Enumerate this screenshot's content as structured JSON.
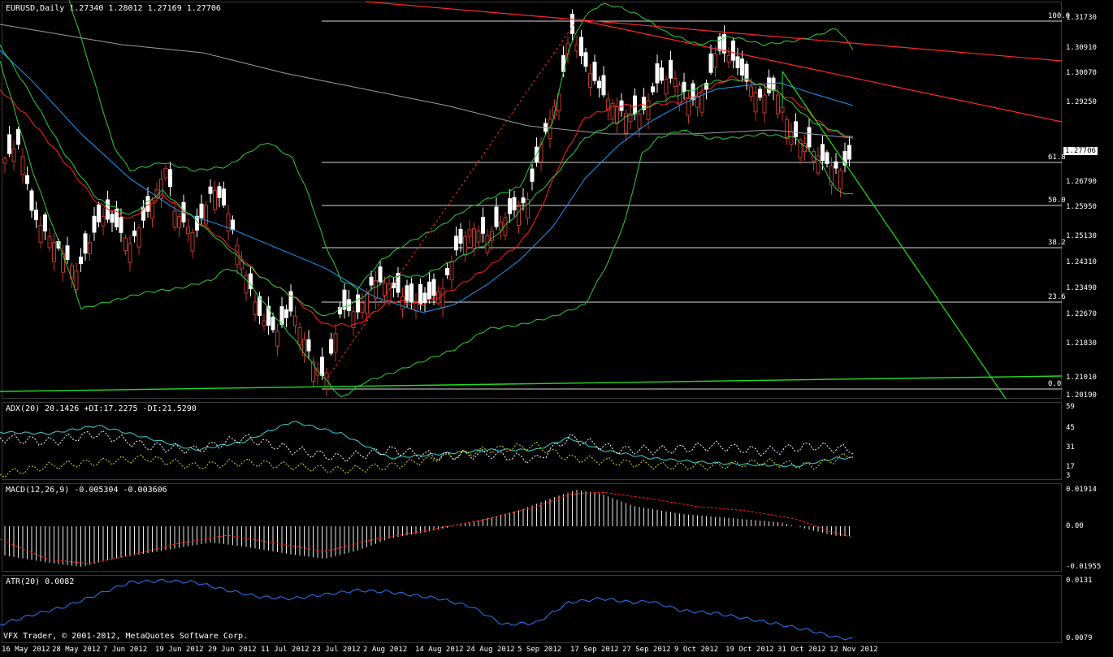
{
  "main": {
    "symbol": "EURUSD,Daily",
    "ohlc": "1.27340 1.28012 1.27169 1.27706",
    "current_price": "1.27706",
    "price_labels": [
      "1.31730",
      "1.30910",
      "1.30070",
      "1.29250",
      "1.28430",
      "1.27706",
      "1.26790",
      "1.25950",
      "1.25130",
      "1.24310",
      "1.23490",
      "1.22670",
      "1.21830",
      "1.21010",
      "1.20190"
    ],
    "fib_levels": [
      "100.0",
      "61.8",
      "50.0",
      "38.2",
      "23.6",
      "0.0"
    ]
  },
  "adx": {
    "title": "ADX(20) 20.1426 +DI:17.2275 -DI:21.5290",
    "scale": [
      "59",
      "45",
      "31",
      "17",
      "3"
    ]
  },
  "macd": {
    "title": "MACD(12,26,9) -0.005304 -0.003606",
    "scale": [
      "0.01914",
      "0.00",
      "-0.01955"
    ]
  },
  "atr": {
    "title": "ATR(20) 0.0082",
    "scale": [
      "0.0131",
      "0.0079"
    ]
  },
  "dates": [
    "16 May 2012",
    "28 May 2012",
    "7 Jun 2012",
    "19 Jun 2012",
    "29 Jun 2012",
    "11 Jul 2012",
    "23 Jul 2012",
    "2 Aug 2012",
    "14 Aug 2012",
    "24 Aug 2012",
    "5 Sep 2012",
    "17 Sep 2012",
    "27 Sep 2012",
    "9 Oct 2012",
    "19 Oct 2012",
    "31 Oct 2012",
    "12 Nov 2012"
  ],
  "copyright": "VFX Trader, © 2001-2012, MetaQuotes Software Corp.",
  "colors": {
    "bull": "#ffffff",
    "bear": "#c0392b",
    "bollinger": "#2ecc40",
    "ema_red": "#ff2020",
    "ema_blue": "#1e9bff",
    "sma_gray": "#9a9aa8",
    "trend_red": "#ff2a2a",
    "trend_green": "#22dd22",
    "adx": "#40d0d0",
    "plus_di": "#e0e000",
    "minus_di": "#ffffff",
    "macd_signal": "#ff2020",
    "atr": "#2d7bff"
  }
}
